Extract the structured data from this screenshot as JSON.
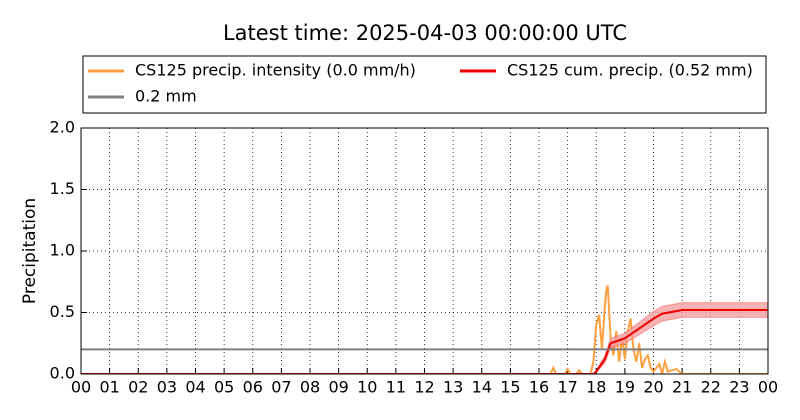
{
  "chart_data": {
    "type": "line",
    "title": "Latest time: 2025-04-03 00:00:00 UTC",
    "y_label": "Precipitation",
    "xlim": [
      0,
      24
    ],
    "ylim": [
      0,
      2.0
    ],
    "grid": true,
    "xticks": [
      {
        "value": 0,
        "label": "00"
      },
      {
        "value": 1,
        "label": "01"
      },
      {
        "value": 2,
        "label": "02"
      },
      {
        "value": 3,
        "label": "03"
      },
      {
        "value": 4,
        "label": "04"
      },
      {
        "value": 5,
        "label": "05"
      },
      {
        "value": 6,
        "label": "06"
      },
      {
        "value": 7,
        "label": "07"
      },
      {
        "value": 8,
        "label": "08"
      },
      {
        "value": 9,
        "label": "09"
      },
      {
        "value": 10,
        "label": "10"
      },
      {
        "value": 11,
        "label": "11"
      },
      {
        "value": 12,
        "label": "12"
      },
      {
        "value": 13,
        "label": "13"
      },
      {
        "value": 14,
        "label": "14"
      },
      {
        "value": 15,
        "label": "15"
      },
      {
        "value": 16,
        "label": "16"
      },
      {
        "value": 17,
        "label": "17"
      },
      {
        "value": 18,
        "label": "18"
      },
      {
        "value": 19,
        "label": "19"
      },
      {
        "value": 20,
        "label": "20"
      },
      {
        "value": 21,
        "label": "21"
      },
      {
        "value": 22,
        "label": "22"
      },
      {
        "value": 23,
        "label": "23"
      },
      {
        "value": 24,
        "label": "00"
      }
    ],
    "yticks": [
      {
        "value": 0,
        "label": "0.0"
      },
      {
        "value": 0.5,
        "label": "0.5"
      },
      {
        "value": 1.0,
        "label": "1.0"
      },
      {
        "value": 1.5,
        "label": "1.5"
      },
      {
        "value": 2.0,
        "label": "2.0"
      }
    ],
    "series": [
      {
        "name": "CS125 precip. intensity (0.0 mm/h)",
        "color": "#ffa040",
        "x": [
          0,
          16.4,
          16.5,
          16.6,
          16.9,
          17.0,
          17.1,
          17.3,
          17.4,
          17.5,
          17.8,
          17.9,
          18.0,
          18.1,
          18.2,
          18.3,
          18.35,
          18.4,
          18.5,
          18.6,
          18.7,
          18.8,
          18.9,
          19.0,
          19.1,
          19.2,
          19.3,
          19.4,
          19.5,
          19.6,
          19.7,
          19.8,
          19.9,
          20.0,
          20.2,
          20.3,
          20.4,
          20.5,
          20.8,
          20.9,
          21.0,
          24
        ],
        "values": [
          0,
          0,
          0.05,
          0,
          0,
          0.04,
          0,
          0,
          0.03,
          0,
          0,
          0.1,
          0.4,
          0.48,
          0.2,
          0.55,
          0.68,
          0.72,
          0.3,
          0.15,
          0.35,
          0.1,
          0.3,
          0.12,
          0.35,
          0.45,
          0.2,
          0.1,
          0.25,
          0.05,
          0.12,
          0.15,
          0.05,
          0.02,
          0.08,
          0,
          0.1,
          0.02,
          0.04,
          0.02,
          0,
          0
        ]
      },
      {
        "name": "CS125 cum. precip. (0.52 mm)",
        "color": "#ee0000",
        "band_color": "#f4a0a0",
        "x": [
          0,
          17.9,
          18.0,
          18.3,
          18.5,
          19.0,
          19.5,
          20.0,
          20.3,
          21.0,
          24
        ],
        "values": [
          0,
          0,
          0.02,
          0.12,
          0.25,
          0.29,
          0.37,
          0.45,
          0.49,
          0.52,
          0.52
        ],
        "error": [
          0,
          0,
          0.01,
          0.03,
          0.04,
          0.04,
          0.05,
          0.06,
          0.06,
          0.06,
          0.06
        ]
      },
      {
        "name": "0.2 mm",
        "color": "#808080",
        "hline": 0.2
      }
    ]
  }
}
